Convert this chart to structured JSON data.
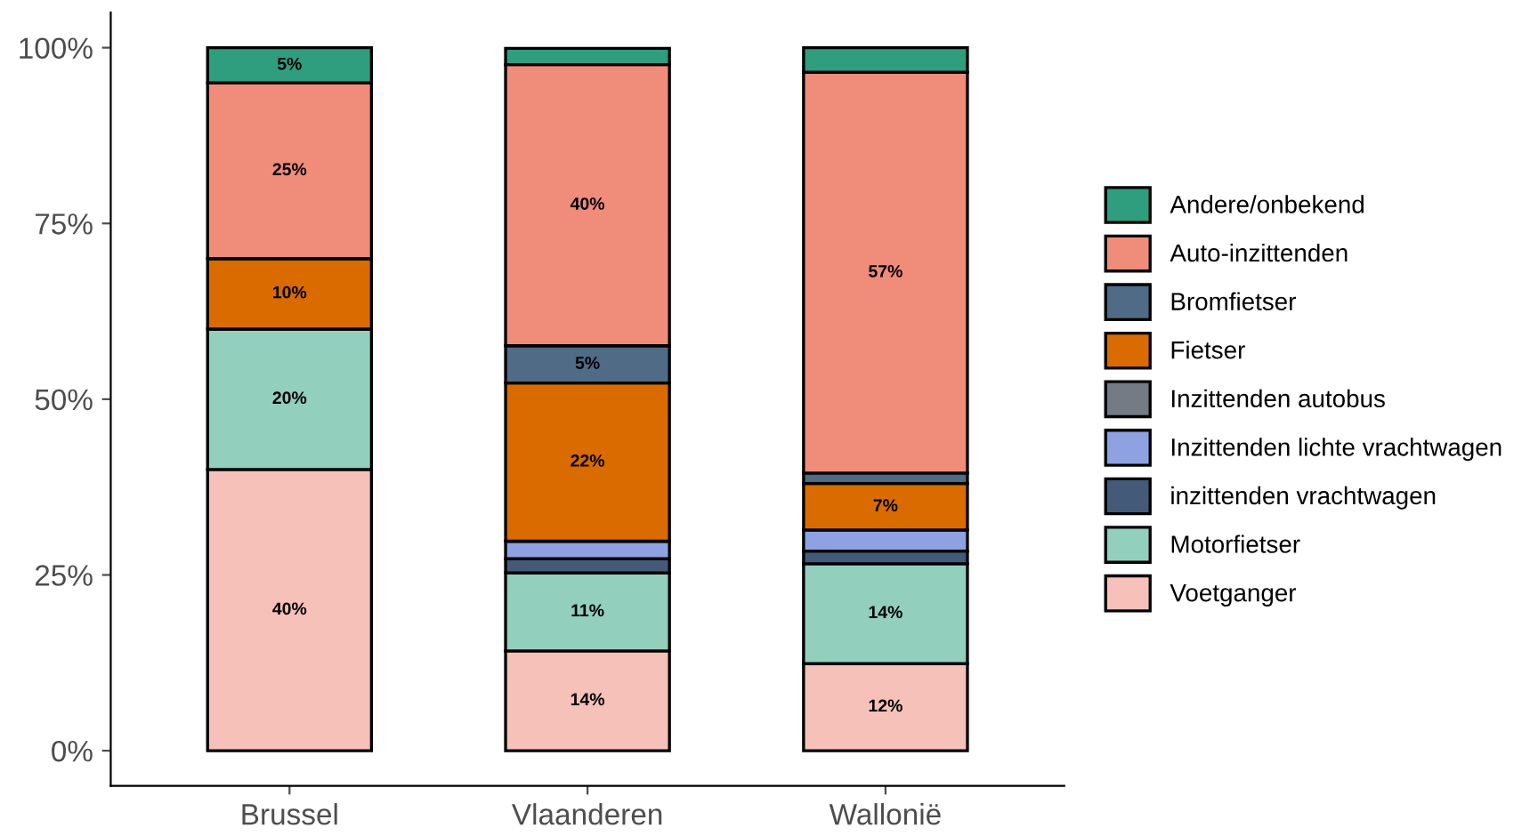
{
  "chart_data": {
    "type": "bar",
    "stacked": true,
    "categories": [
      "Brussel",
      "Vlaanderen",
      "Wallonië"
    ],
    "series": [
      {
        "name": "Voetganger",
        "color": "#f5c1b8",
        "values": [
          40,
          14.2,
          12.4
        ],
        "value_labels": [
          "40%",
          "14%",
          "12%"
        ]
      },
      {
        "name": "Motorfietser",
        "color": "#93cfbd",
        "values": [
          20,
          11.1,
          14.2
        ],
        "value_labels": [
          "20%",
          "11%",
          "14%"
        ]
      },
      {
        "name": "inzittenden vrachtwagen",
        "color": "#435a78",
        "values": [
          0,
          2,
          1.8
        ],
        "value_labels": [
          null,
          null,
          null
        ]
      },
      {
        "name": "Inzittenden lichte vrachtwagen",
        "color": "#8ea1e0",
        "values": [
          0,
          2.5,
          3
        ],
        "value_labels": [
          null,
          null,
          null
        ]
      },
      {
        "name": "Inzittenden autobus",
        "color": "#757b84",
        "values": [
          0,
          0,
          0
        ],
        "value_labels": [
          null,
          null,
          null
        ]
      },
      {
        "name": "Fietser",
        "color": "#d96b00",
        "values": [
          10,
          22.5,
          6.6
        ],
        "value_labels": [
          "10%",
          "22%",
          "7%"
        ]
      },
      {
        "name": "Bromfietser",
        "color": "#4f6b85",
        "values": [
          0,
          5.3,
          1.5
        ],
        "value_labels": [
          null,
          "5%",
          null
        ]
      },
      {
        "name": "Auto-inzittenden",
        "color": "#f08c7a",
        "values": [
          25,
          40,
          57
        ],
        "value_labels": [
          "25%",
          "40%",
          "57%"
        ]
      },
      {
        "name": "Andere/onbekend",
        "color": "#2e9e7e",
        "values": [
          5,
          2.3,
          3.5
        ],
        "value_labels": [
          "5%",
          null,
          null
        ]
      }
    ],
    "ylim": [
      -5,
      105
    ],
    "yticks": [
      {
        "value": 0,
        "label": "0%"
      },
      {
        "value": 25,
        "label": "25%"
      },
      {
        "value": 50,
        "label": "50%"
      },
      {
        "value": 75,
        "label": "75%"
      },
      {
        "value": 100,
        "label": "100%"
      }
    ],
    "grid": false,
    "legend": "right"
  }
}
